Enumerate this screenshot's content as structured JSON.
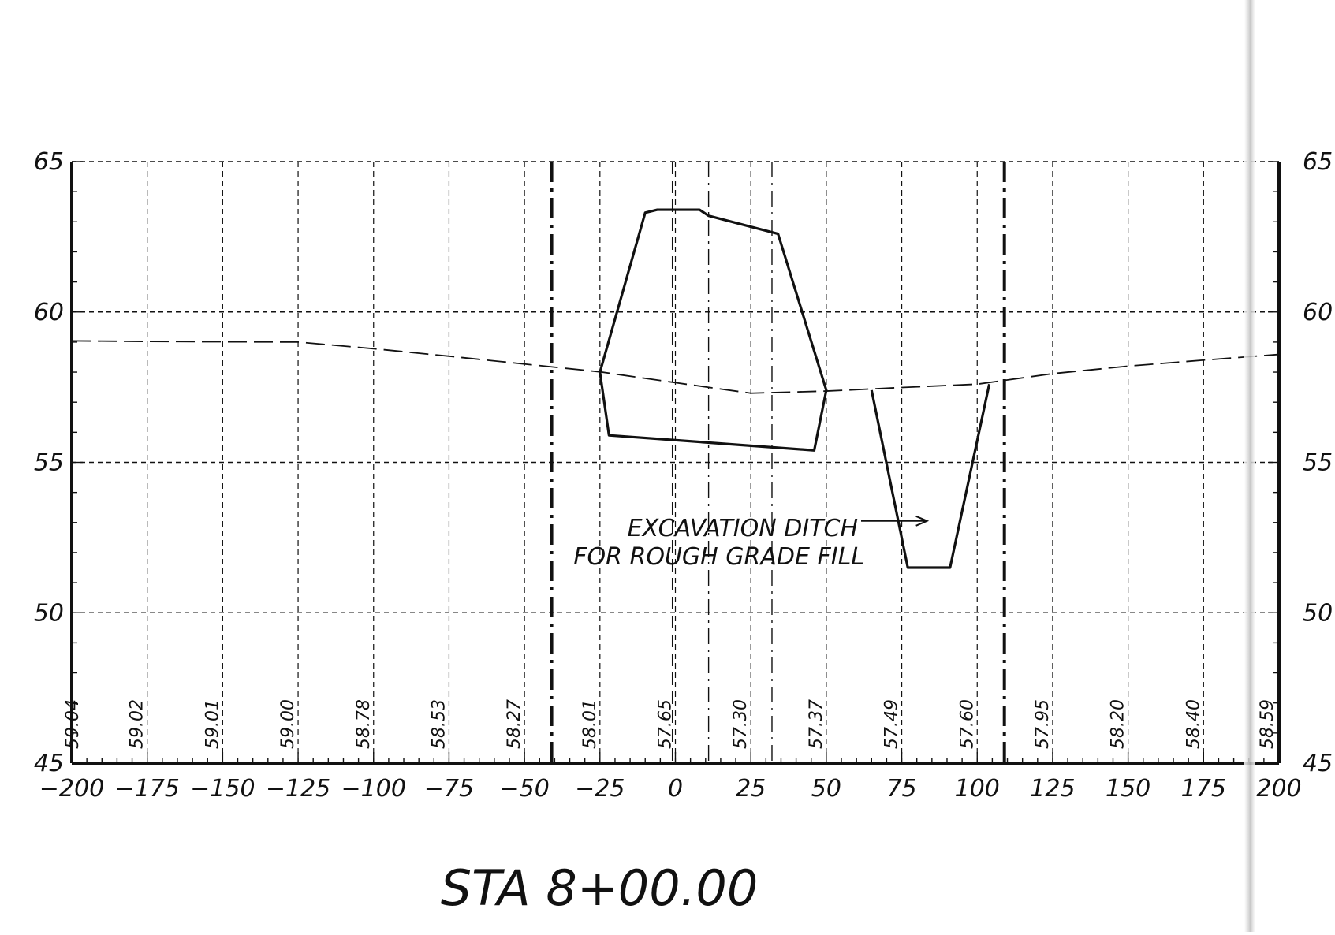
{
  "title": "STA 8+00.00",
  "annotation": {
    "line1": "EXCAVATION DITCH",
    "line2": "FOR ROUGH GRADE FILL"
  },
  "colors": {
    "ink": "#111111",
    "paper": "#ffffff"
  },
  "chart_data": {
    "type": "line",
    "title": "STA 8+00.00",
    "xlabel": "",
    "ylabel": "",
    "xlim": [
      -200,
      200
    ],
    "ylim": [
      45,
      65
    ],
    "grid": true,
    "x_ticks": [
      "-200",
      "-175",
      "-150",
      "-125",
      "-100",
      "-75",
      "-50",
      "-25",
      "0",
      "25",
      "50",
      "75",
      "100",
      "125",
      "150",
      "175",
      "200"
    ],
    "y_ticks_left": [
      "45",
      "50",
      "55",
      "60",
      "65"
    ],
    "y_ticks_right": [
      "45",
      "50",
      "55",
      "60",
      "65"
    ],
    "ground_elevation_labels": [
      {
        "x": -200,
        "label": "59.04"
      },
      {
        "x": -175,
        "label": "59.02"
      },
      {
        "x": -150,
        "label": "59.01"
      },
      {
        "x": -125,
        "label": "59.00"
      },
      {
        "x": -100,
        "label": "58.78"
      },
      {
        "x": -75,
        "label": "58.53"
      },
      {
        "x": -50,
        "label": "58.27"
      },
      {
        "x": -25,
        "label": "58.01"
      },
      {
        "x": 0,
        "label": "57.65"
      },
      {
        "x": 25,
        "label": "57.30"
      },
      {
        "x": 50,
        "label": "57.37"
      },
      {
        "x": 75,
        "label": "57.49"
      },
      {
        "x": 100,
        "label": "57.60"
      },
      {
        "x": 125,
        "label": "57.95"
      },
      {
        "x": 150,
        "label": "58.20"
      },
      {
        "x": 175,
        "label": "58.40"
      },
      {
        "x": 200,
        "label": "58.59"
      }
    ],
    "existing_ground": [
      [
        -200,
        59.04
      ],
      [
        -175,
        59.02
      ],
      [
        -150,
        59.01
      ],
      [
        -125,
        59.0
      ],
      [
        -100,
        58.78
      ],
      [
        -75,
        58.53
      ],
      [
        -50,
        58.27
      ],
      [
        -25,
        58.01
      ],
      [
        0,
        57.65
      ],
      [
        25,
        57.3
      ],
      [
        50,
        57.37
      ],
      [
        75,
        57.49
      ],
      [
        100,
        57.6
      ],
      [
        125,
        57.95
      ],
      [
        150,
        58.2
      ],
      [
        175,
        58.4
      ],
      [
        200,
        58.59
      ]
    ],
    "fill_section": [
      [
        -25,
        58.0
      ],
      [
        -10,
        63.3
      ],
      [
        -6,
        63.4
      ],
      [
        8,
        63.4
      ],
      [
        11,
        63.2
      ],
      [
        34,
        62.6
      ],
      [
        50,
        57.4
      ],
      [
        46,
        55.4
      ],
      [
        -22,
        55.9
      ],
      [
        -25,
        58.0
      ]
    ],
    "ditch_section": [
      [
        65,
        57.4
      ],
      [
        77,
        51.5
      ],
      [
        91,
        51.5
      ],
      [
        104,
        57.6
      ]
    ],
    "vertical_markers": [
      {
        "x": -41,
        "style": "dash-dot-heavy"
      },
      {
        "x": -1,
        "style": "dashed"
      },
      {
        "x": 11,
        "style": "dash-dot"
      },
      {
        "x": 32,
        "style": "dash-dot"
      },
      {
        "x": 109,
        "style": "dash-dot-heavy"
      }
    ],
    "annotation_arrow_target": [
      86,
      53.0
    ]
  }
}
